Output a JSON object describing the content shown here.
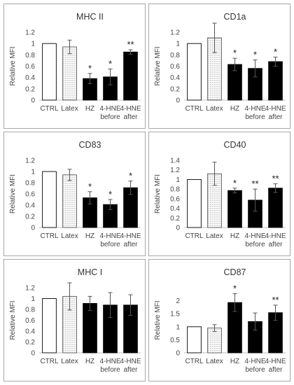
{
  "chart_data": [
    {
      "type": "bar",
      "title": "MHC II",
      "ylabel": "Relative MFI",
      "categories": [
        [
          "CTRL"
        ],
        [
          "Latex"
        ],
        [
          "HZ"
        ],
        [
          "4-HNE",
          "before"
        ],
        [
          "4-HNE",
          "after"
        ]
      ],
      "ylim": [
        0,
        1.2
      ],
      "yticks": [
        "0",
        "0.2",
        "0.4",
        "0.6",
        "0.8",
        "1",
        "1.2"
      ],
      "yticks_values": [
        0,
        0.2,
        0.4,
        0.6,
        0.8,
        1,
        1.2
      ],
      "values": [
        1.0,
        0.94,
        0.38,
        0.41,
        0.85
      ],
      "errors": [
        0,
        0.12,
        0.09,
        0.14,
        0.04
      ],
      "significance": [
        "",
        "",
        "*",
        "*",
        "**"
      ],
      "fills": [
        "white",
        "dotted",
        "black",
        "black",
        "black"
      ]
    },
    {
      "type": "bar",
      "title": "CD1a",
      "ylabel": "Relative MFI",
      "categories": [
        [
          "CTRL"
        ],
        [
          "Latex"
        ],
        [
          "HZ"
        ],
        [
          "4-HNE",
          "before"
        ],
        [
          "4-HNE",
          "after"
        ]
      ],
      "ylim": [
        0,
        1.2
      ],
      "yticks": [
        "0",
        "0.2",
        "0.4",
        "0.6",
        "0.8",
        "1",
        "1.2"
      ],
      "yticks_values": [
        0,
        0.2,
        0.4,
        0.6,
        0.8,
        1,
        1.2
      ],
      "values": [
        1.0,
        1.1,
        0.63,
        0.56,
        0.68
      ],
      "errors": [
        0,
        0.26,
        0.11,
        0.15,
        0.08
      ],
      "significance": [
        "",
        "",
        "*",
        "*",
        "*"
      ],
      "fills": [
        "white",
        "dotted",
        "black",
        "black",
        "black"
      ]
    },
    {
      "type": "bar",
      "title": "CD83",
      "ylabel": "Relative MFI",
      "categories": [
        [
          "CTRL"
        ],
        [
          "Latex"
        ],
        [
          "HZ"
        ],
        [
          "4-HNE",
          "before"
        ],
        [
          "4-HNE",
          "after"
        ]
      ],
      "ylim": [
        0,
        1.2
      ],
      "yticks": [
        "0",
        "0.2",
        "0.4",
        "0.6",
        "0.8",
        "1",
        "1.2"
      ],
      "yticks_values": [
        0,
        0.2,
        0.4,
        0.6,
        0.8,
        1,
        1.2
      ],
      "values": [
        1.0,
        0.94,
        0.53,
        0.41,
        0.71
      ],
      "errors": [
        0,
        0.1,
        0.11,
        0.09,
        0.12
      ],
      "significance": [
        "",
        "",
        "*",
        "*",
        "*"
      ],
      "fills": [
        "white",
        "dotted",
        "black",
        "black",
        "black"
      ]
    },
    {
      "type": "bar",
      "title": "CD40",
      "ylabel": "Relative MFI",
      "categories": [
        [
          "CTRL"
        ],
        [
          "Latex"
        ],
        [
          "HZ"
        ],
        [
          "4-HNE",
          "before"
        ],
        [
          "4-HNE",
          "after"
        ]
      ],
      "ylim": [
        0,
        1.4
      ],
      "yticks": [
        "0",
        "0.2",
        "0.4",
        "0.6",
        "0.8",
        "1",
        "1.2",
        "1.4"
      ],
      "yticks_values": [
        0,
        0.2,
        0.4,
        0.6,
        0.8,
        1,
        1.2,
        1.4
      ],
      "values": [
        1.0,
        1.12,
        0.77,
        0.57,
        0.82
      ],
      "errors": [
        0,
        0.24,
        0.05,
        0.23,
        0.09
      ],
      "significance": [
        "",
        "",
        "*",
        "**",
        "**"
      ],
      "fills": [
        "white",
        "dotted",
        "black",
        "black",
        "black"
      ]
    },
    {
      "type": "bar",
      "title": "MHC I",
      "ylabel": "Relative MFI",
      "categories": [
        [
          "CTRL"
        ],
        [
          "Latex"
        ],
        [
          "HZ"
        ],
        [
          "4-HNE",
          "before"
        ],
        [
          "4-HNE",
          "after"
        ]
      ],
      "ylim": [
        0,
        1.2
      ],
      "yticks": [
        "0",
        "0.2",
        "0.4",
        "0.6",
        "0.8",
        "1",
        "1.2"
      ],
      "yticks_values": [
        0,
        0.2,
        0.4,
        0.6,
        0.8,
        1,
        1.2
      ],
      "values": [
        1.0,
        1.04,
        0.91,
        0.88,
        0.88
      ],
      "errors": [
        0,
        0.25,
        0.13,
        0.23,
        0.19
      ],
      "significance": [
        "",
        "",
        "",
        "",
        ""
      ],
      "fills": [
        "white",
        "dotted",
        "black",
        "black",
        "black"
      ]
    },
    {
      "type": "bar",
      "title": "CD87",
      "ylabel": "Relative MFI",
      "categories": [
        [
          "CTRL"
        ],
        [
          "Latex"
        ],
        [
          "HZ"
        ],
        [
          "4-HNE",
          "before"
        ],
        [
          "4-HNE",
          "after"
        ]
      ],
      "ylim": [
        0,
        2.5
      ],
      "yticks": [
        "0",
        "0.5",
        "1",
        "1.5",
        "2"
      ],
      "yticks_values": [
        0,
        0.5,
        1,
        1.5,
        2
      ],
      "values": [
        1.0,
        0.95,
        1.93,
        1.2,
        1.54
      ],
      "errors": [
        0,
        0.13,
        0.34,
        0.33,
        0.29
      ],
      "significance": [
        "",
        "",
        "*",
        "",
        "**"
      ],
      "fills": [
        "white",
        "dotted",
        "black",
        "black",
        "black"
      ]
    }
  ]
}
